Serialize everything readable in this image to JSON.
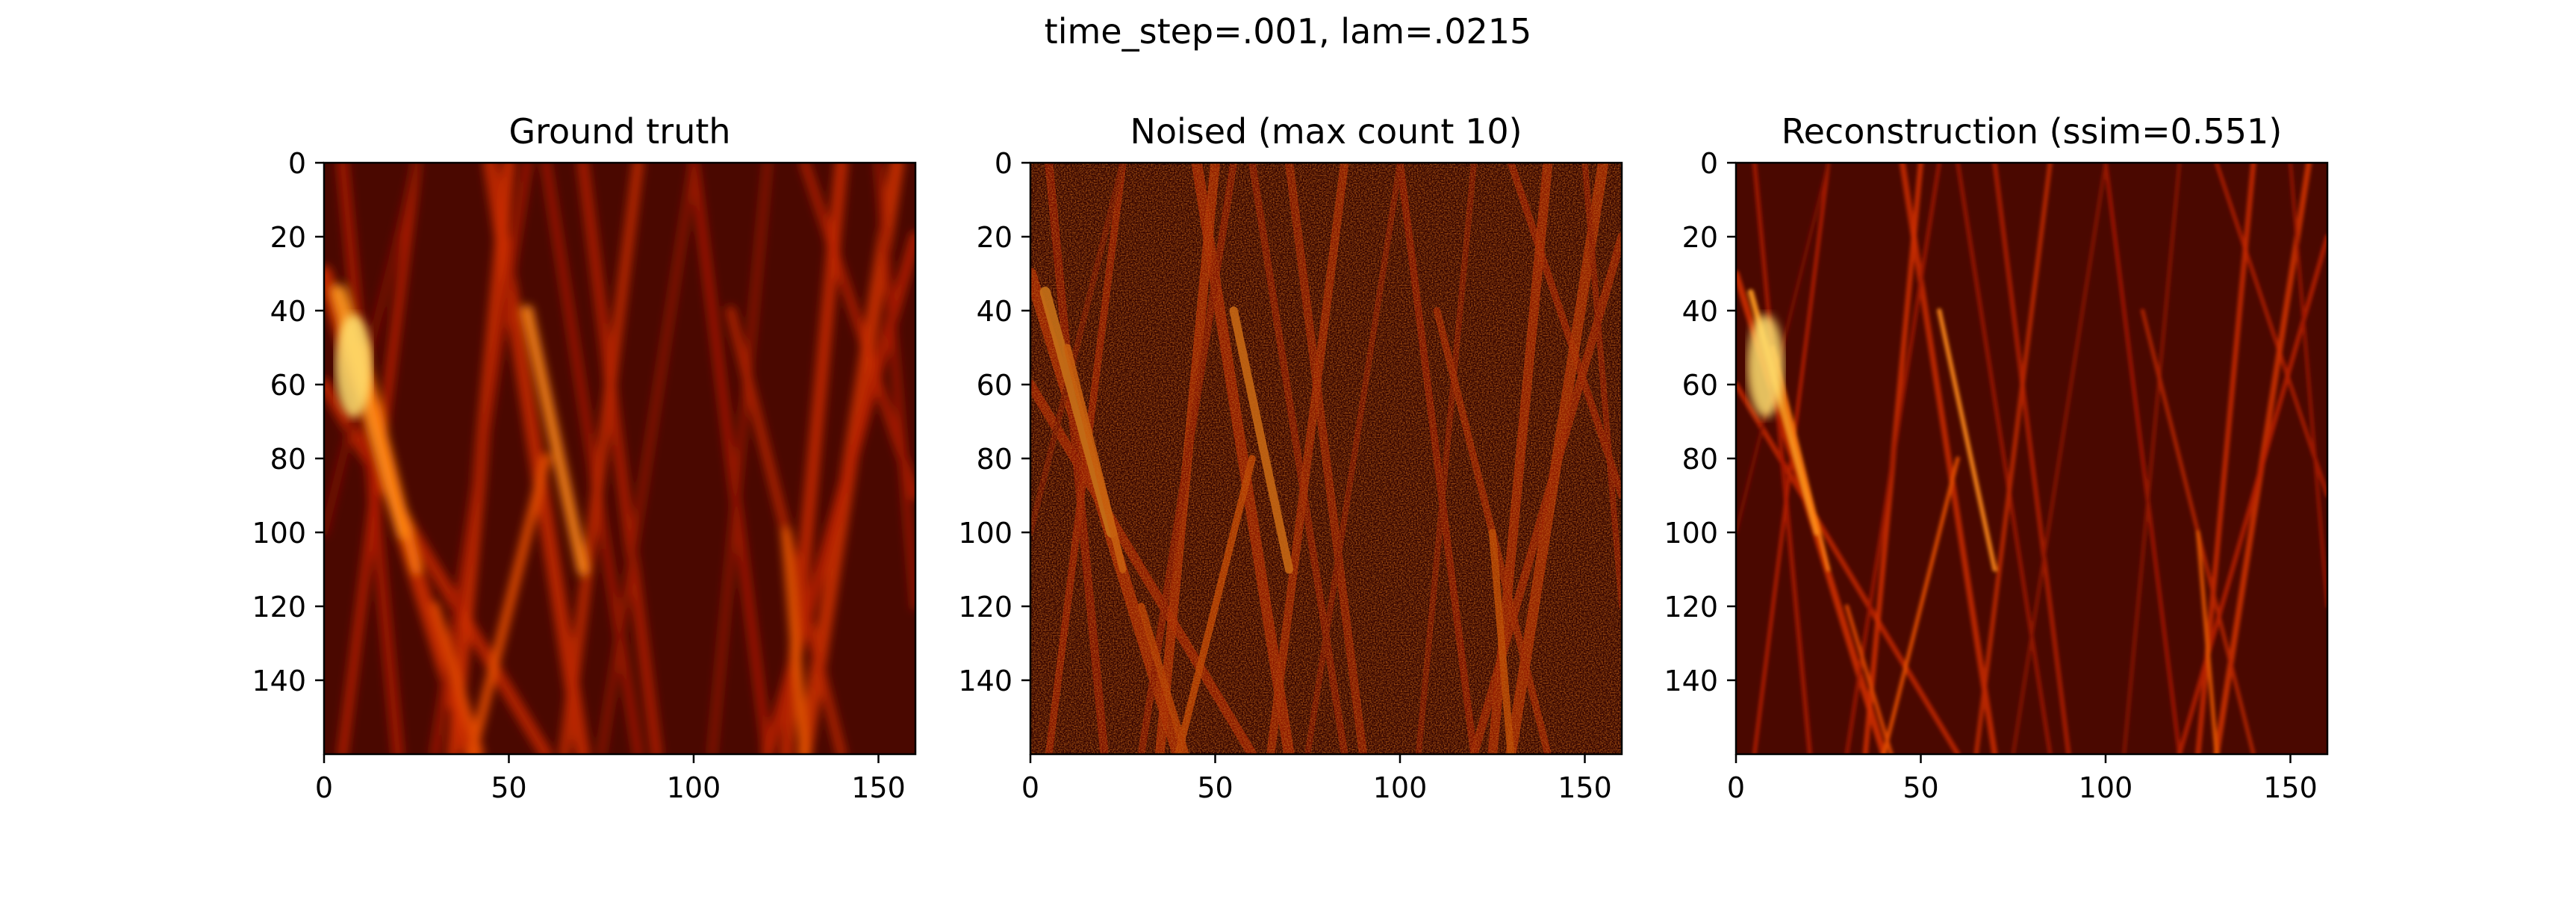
{
  "figure": {
    "suptitle": "time_step=.001, lam=.0215"
  },
  "colors": {
    "colormap": "afmhot",
    "background": "#ffffff",
    "axis": "#000000"
  },
  "chart_data": [
    {
      "type": "heatmap",
      "title": "Ground truth",
      "xlabel": "",
      "ylabel": "",
      "xlim": [
        0,
        160
      ],
      "ylim": [
        160,
        0
      ],
      "xticks": [
        "0",
        "50",
        "100",
        "150"
      ],
      "yticks": [
        "0",
        "20",
        "40",
        "60",
        "80",
        "100",
        "120",
        "140"
      ],
      "grid": false
    },
    {
      "type": "heatmap",
      "title": "Noised (max count 10)",
      "xlabel": "",
      "ylabel": "",
      "xlim": [
        0,
        160
      ],
      "ylim": [
        160,
        0
      ],
      "xticks": [
        "0",
        "50",
        "100",
        "150"
      ],
      "yticks": [
        "0",
        "20",
        "40",
        "60",
        "80",
        "100",
        "120",
        "140"
      ],
      "grid": false
    },
    {
      "type": "heatmap",
      "title": "Reconstruction (ssim=0.551)",
      "xlabel": "",
      "ylabel": "",
      "xlim": [
        0,
        160
      ],
      "ylim": [
        160,
        0
      ],
      "xticks": [
        "0",
        "50",
        "100",
        "150"
      ],
      "yticks": [
        "0",
        "20",
        "40",
        "60",
        "80",
        "100",
        "120",
        "140"
      ],
      "grid": false
    }
  ]
}
